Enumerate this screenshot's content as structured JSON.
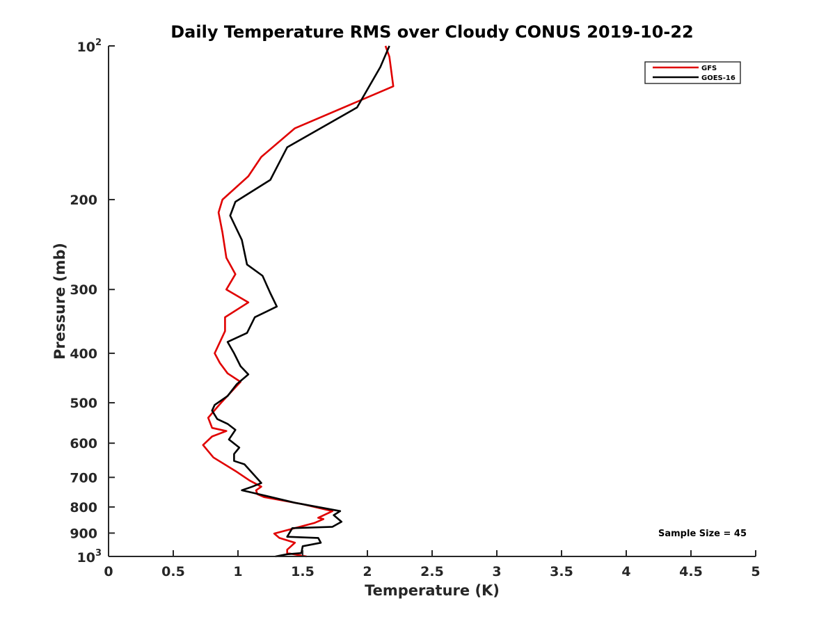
{
  "chart_data": {
    "type": "line",
    "title": "Daily Temperature RMS over Cloudy CONUS 2019-10-22",
    "xlabel": "Temperature (K)",
    "ylabel": "Pressure (mb)",
    "xlim": [
      0,
      5
    ],
    "ylim": [
      100,
      1000
    ],
    "y_scale": "log",
    "y_reversed": true,
    "grid": false,
    "legend_position": "top-right",
    "x_ticks": [
      "0",
      "0.5",
      "1",
      "1.5",
      "2",
      "2.5",
      "3",
      "3.5",
      "4",
      "4.5",
      "5"
    ],
    "y_ticks": [
      {
        "value": 100,
        "base": "10",
        "exp": "2"
      },
      {
        "value": 200,
        "text": "200"
      },
      {
        "value": 300,
        "text": "300"
      },
      {
        "value": 400,
        "text": "400"
      },
      {
        "value": 500,
        "text": "500"
      },
      {
        "value": 600,
        "text": "600"
      },
      {
        "value": 700,
        "text": "700"
      },
      {
        "value": 800,
        "text": "800"
      },
      {
        "value": 900,
        "text": "900"
      },
      {
        "value": 1000,
        "base": "10",
        "exp": "3"
      }
    ],
    "annotation": "Sample Size = 45",
    "series": [
      {
        "name": "GFS",
        "color": "#e00000",
        "x": [
          2.14,
          2.17,
          2.2,
          1.44,
          1.18,
          1.08,
          0.88,
          0.85,
          0.88,
          0.91,
          0.98,
          0.91,
          1.08,
          0.9,
          0.9,
          0.82,
          0.86,
          0.92,
          1.02,
          0.87,
          0.84,
          0.77,
          0.8,
          0.91,
          0.8,
          0.73,
          0.81,
          0.98,
          1.09,
          1.18,
          1.14,
          1.15,
          1.2,
          1.5,
          1.73,
          1.62,
          1.66,
          1.59,
          1.28,
          1.32,
          1.44,
          1.38,
          1.38,
          1.53
        ],
        "y": [
          100,
          105,
          120,
          145,
          165,
          180,
          200,
          212,
          232,
          260,
          280,
          300,
          318,
          340,
          362,
          400,
          418,
          438,
          455,
          500,
          510,
          535,
          560,
          568,
          582,
          605,
          640,
          680,
          710,
          730,
          742,
          755,
          765,
          790,
          815,
          840,
          845,
          860,
          902,
          920,
          940,
          970,
          985,
          1000
        ]
      },
      {
        "name": "GOES-16",
        "color": "#000000",
        "x": [
          2.17,
          2.1,
          1.92,
          1.38,
          1.25,
          0.98,
          0.94,
          1.03,
          1.07,
          1.19,
          1.25,
          1.3,
          1.13,
          1.07,
          0.92,
          0.97,
          1.02,
          1.08,
          0.99,
          0.92,
          0.82,
          0.8,
          0.84,
          0.92,
          0.98,
          0.93,
          1.01,
          0.97,
          0.97,
          1.05,
          1.18,
          1.11,
          1.03,
          1.13,
          1.44,
          1.79,
          1.74,
          1.8,
          1.73,
          1.42,
          1.38,
          1.62,
          1.64,
          1.5,
          1.49,
          1.38,
          1.29
        ],
        "y": [
          100,
          110,
          132,
          158,
          183,
          202,
          215,
          240,
          268,
          282,
          305,
          324,
          340,
          365,
          380,
          400,
          424,
          440,
          460,
          485,
          505,
          518,
          538,
          550,
          565,
          590,
          612,
          630,
          650,
          660,
          718,
          730,
          742,
          752,
          785,
          815,
          830,
          855,
          875,
          880,
          915,
          920,
          940,
          955,
          985,
          990,
          1000
        ]
      }
    ]
  }
}
